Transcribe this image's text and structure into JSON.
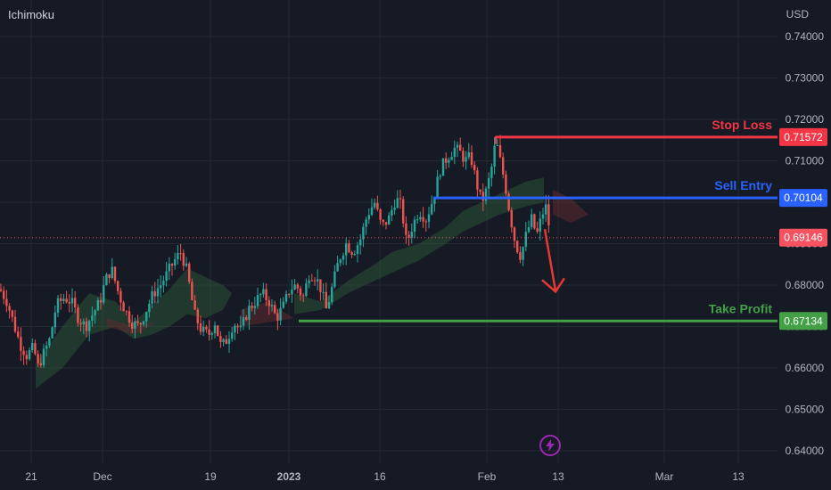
{
  "header": {
    "indicator": "Ichimoku",
    "currency": "USD"
  },
  "colors": {
    "background": "#161a25",
    "grid": "#242833",
    "axis_text": "#b2b5be",
    "candle_up": "#26a69a",
    "candle_down": "#ef5350",
    "stop_loss": "#f23645",
    "sell_entry": "#2962ff",
    "take_profit": "#43a047",
    "current_price": "#f7525f",
    "cloud_bull": "#2e5e3a",
    "cloud_bear": "#5e2a2f",
    "events_icon": "#9c27b0"
  },
  "chart_data": {
    "type": "candlestick",
    "instrument_quote": "USD",
    "y_ticks": [
      "0.74000",
      "0.73000",
      "0.72000",
      "0.71000",
      "0.70000",
      "0.69000",
      "0.68000",
      "0.67000",
      "0.66000",
      "0.65000",
      "0.64000"
    ],
    "x_ticks": [
      "21",
      "Dec",
      "19",
      "2023",
      "16",
      "Feb",
      "13",
      "Mar",
      "13"
    ],
    "ylim": [
      0.637,
      0.7445
    ],
    "grid": true,
    "levels": [
      {
        "name": "Stop Loss",
        "price": 0.71572,
        "price_label": "0.71572",
        "color": "#f23645"
      },
      {
        "name": "Sell Entry",
        "price": 0.70104,
        "price_label": "0.70104",
        "color": "#2962ff"
      },
      {
        "name": "Take Profit",
        "price": 0.67134,
        "price_label": "0.67134",
        "color": "#43a047"
      }
    ],
    "current_price": {
      "price": 0.69146,
      "price_label": "0.69146"
    },
    "projection": {
      "direction": "down",
      "from": 0.6935,
      "to": 0.6795
    },
    "price_path": [
      [
        0,
        0.679
      ],
      [
        8,
        0.676
      ],
      [
        15,
        0.671
      ],
      [
        22,
        0.666
      ],
      [
        30,
        0.663
      ],
      [
        38,
        0.665
      ],
      [
        42,
        0.66
      ],
      [
        50,
        0.664
      ],
      [
        56,
        0.667
      ],
      [
        63,
        0.675
      ],
      [
        72,
        0.677
      ],
      [
        80,
        0.676
      ],
      [
        88,
        0.672
      ],
      [
        96,
        0.67
      ],
      [
        104,
        0.673
      ],
      [
        112,
        0.676
      ],
      [
        118,
        0.681
      ],
      [
        125,
        0.684
      ],
      [
        133,
        0.678
      ],
      [
        140,
        0.674
      ],
      [
        148,
        0.671
      ],
      [
        156,
        0.67
      ],
      [
        164,
        0.674
      ],
      [
        172,
        0.678
      ],
      [
        180,
        0.68
      ],
      [
        188,
        0.683
      ],
      [
        196,
        0.686
      ],
      [
        203,
        0.688
      ],
      [
        210,
        0.683
      ],
      [
        218,
        0.673
      ],
      [
        226,
        0.669
      ],
      [
        234,
        0.668
      ],
      [
        241,
        0.671
      ],
      [
        248,
        0.665
      ],
      [
        255,
        0.667
      ],
      [
        262,
        0.671
      ],
      [
        270,
        0.669
      ],
      [
        278,
        0.674
      ],
      [
        286,
        0.676
      ],
      [
        294,
        0.678
      ],
      [
        302,
        0.676
      ],
      [
        310,
        0.672
      ],
      [
        318,
        0.675
      ],
      [
        325,
        0.679
      ],
      [
        332,
        0.68
      ],
      [
        340,
        0.677
      ],
      [
        347,
        0.683
      ],
      [
        354,
        0.682
      ],
      [
        360,
        0.679
      ],
      [
        366,
        0.674
      ],
      [
        372,
        0.679
      ],
      [
        380,
        0.686
      ],
      [
        388,
        0.69
      ],
      [
        396,
        0.688
      ],
      [
        404,
        0.691
      ],
      [
        412,
        0.697
      ],
      [
        420,
        0.7
      ],
      [
        428,
        0.694
      ],
      [
        436,
        0.696
      ],
      [
        444,
        0.701
      ],
      [
        450,
        0.699
      ],
      [
        456,
        0.69
      ],
      [
        462,
        0.694
      ],
      [
        470,
        0.698
      ],
      [
        478,
        0.696
      ],
      [
        486,
        0.701
      ],
      [
        494,
        0.708
      ],
      [
        502,
        0.711
      ],
      [
        510,
        0.713
      ],
      [
        516,
        0.712
      ],
      [
        522,
        0.71
      ],
      [
        528,
        0.711
      ],
      [
        534,
        0.705
      ],
      [
        540,
        0.7
      ],
      [
        546,
        0.703
      ],
      [
        552,
        0.709
      ],
      [
        556,
        0.715
      ],
      [
        561,
        0.71
      ],
      [
        566,
        0.705
      ],
      [
        572,
        0.697
      ],
      [
        578,
        0.69
      ],
      [
        584,
        0.687
      ],
      [
        590,
        0.692
      ],
      [
        596,
        0.696
      ],
      [
        602,
        0.692
      ],
      [
        608,
        0.697
      ],
      [
        612,
        0.699
      ],
      [
        616,
        0.694
      ]
    ],
    "cloud_bull": [
      [
        [
          40,
          0.661
        ],
        [
          70,
          0.67
        ],
        [
          100,
          0.678
        ],
        [
          130,
          0.676
        ],
        [
          150,
          0.671
        ],
        [
          170,
          0.675
        ],
        [
          190,
          0.679
        ],
        [
          210,
          0.684
        ],
        [
          230,
          0.682
        ],
        [
          250,
          0.68
        ],
        [
          260,
          0.678
        ],
        [
          250,
          0.674
        ],
        [
          230,
          0.672
        ],
        [
          210,
          0.673
        ],
        [
          190,
          0.67
        ],
        [
          170,
          0.668
        ],
        [
          150,
          0.667
        ],
        [
          130,
          0.67
        ],
        [
          100,
          0.668
        ],
        [
          70,
          0.66
        ],
        [
          40,
          0.655
        ]
      ],
      [
        [
          330,
          0.678
        ],
        [
          360,
          0.676
        ],
        [
          390,
          0.681
        ],
        [
          420,
          0.685
        ],
        [
          440,
          0.688
        ],
        [
          470,
          0.69
        ],
        [
          500,
          0.694
        ],
        [
          520,
          0.698
        ],
        [
          540,
          0.7
        ],
        [
          560,
          0.702
        ],
        [
          590,
          0.705
        ],
        [
          610,
          0.706
        ],
        [
          610,
          0.7
        ],
        [
          590,
          0.699
        ],
        [
          560,
          0.697
        ],
        [
          540,
          0.695
        ],
        [
          520,
          0.693
        ],
        [
          500,
          0.69
        ],
        [
          470,
          0.686
        ],
        [
          440,
          0.683
        ],
        [
          420,
          0.681
        ],
        [
          390,
          0.678
        ],
        [
          360,
          0.674
        ],
        [
          330,
          0.673
        ]
      ]
    ],
    "cloud_bear": [
      [
        [
          270,
          0.674
        ],
        [
          300,
          0.676
        ],
        [
          330,
          0.672
        ],
        [
          300,
          0.671
        ],
        [
          270,
          0.67
        ]
      ],
      [
        [
          620,
          0.703
        ],
        [
          640,
          0.701
        ],
        [
          660,
          0.697
        ],
        [
          640,
          0.695
        ],
        [
          620,
          0.697
        ]
      ],
      [
        [
          120,
          0.672
        ],
        [
          150,
          0.67
        ],
        [
          175,
          0.671
        ],
        [
          150,
          0.668
        ],
        [
          120,
          0.67
        ]
      ]
    ]
  }
}
